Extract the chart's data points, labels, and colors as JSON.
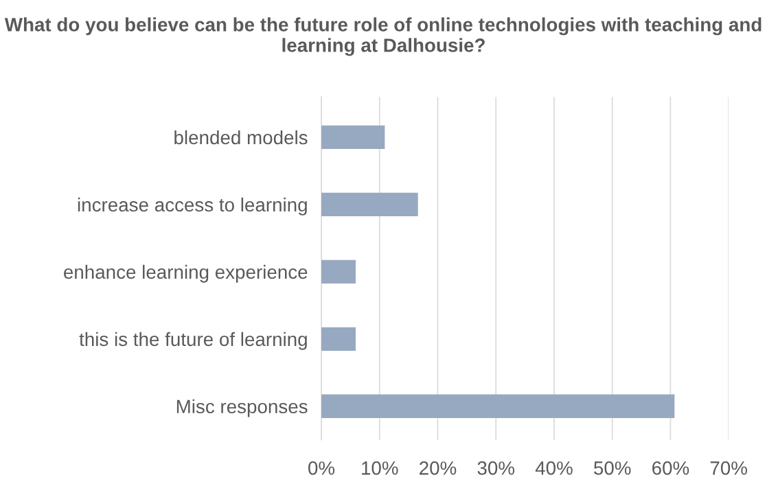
{
  "chart_data": {
    "type": "bar",
    "orientation": "horizontal",
    "title": "What do you believe can be the future role of online technologies with teaching and learning at Dalhousie?",
    "categories": [
      "blended models",
      "increase access to learning",
      "enhance learning experience",
      "this is the future of learning",
      "Misc responses"
    ],
    "values": [
      10.9,
      16.6,
      5.9,
      5.9,
      60.7
    ],
    "color": "#97a9c0",
    "xlim": [
      0,
      70
    ],
    "xticks": [
      {
        "value": 0,
        "label": "0%"
      },
      {
        "value": 10,
        "label": "10%"
      },
      {
        "value": 20,
        "label": "20%"
      },
      {
        "value": 30,
        "label": "30%"
      },
      {
        "value": 40,
        "label": "40%"
      },
      {
        "value": 50,
        "label": "50%"
      },
      {
        "value": 60,
        "label": "60%"
      },
      {
        "value": 70,
        "label": "70%"
      }
    ],
    "grid": "x"
  }
}
